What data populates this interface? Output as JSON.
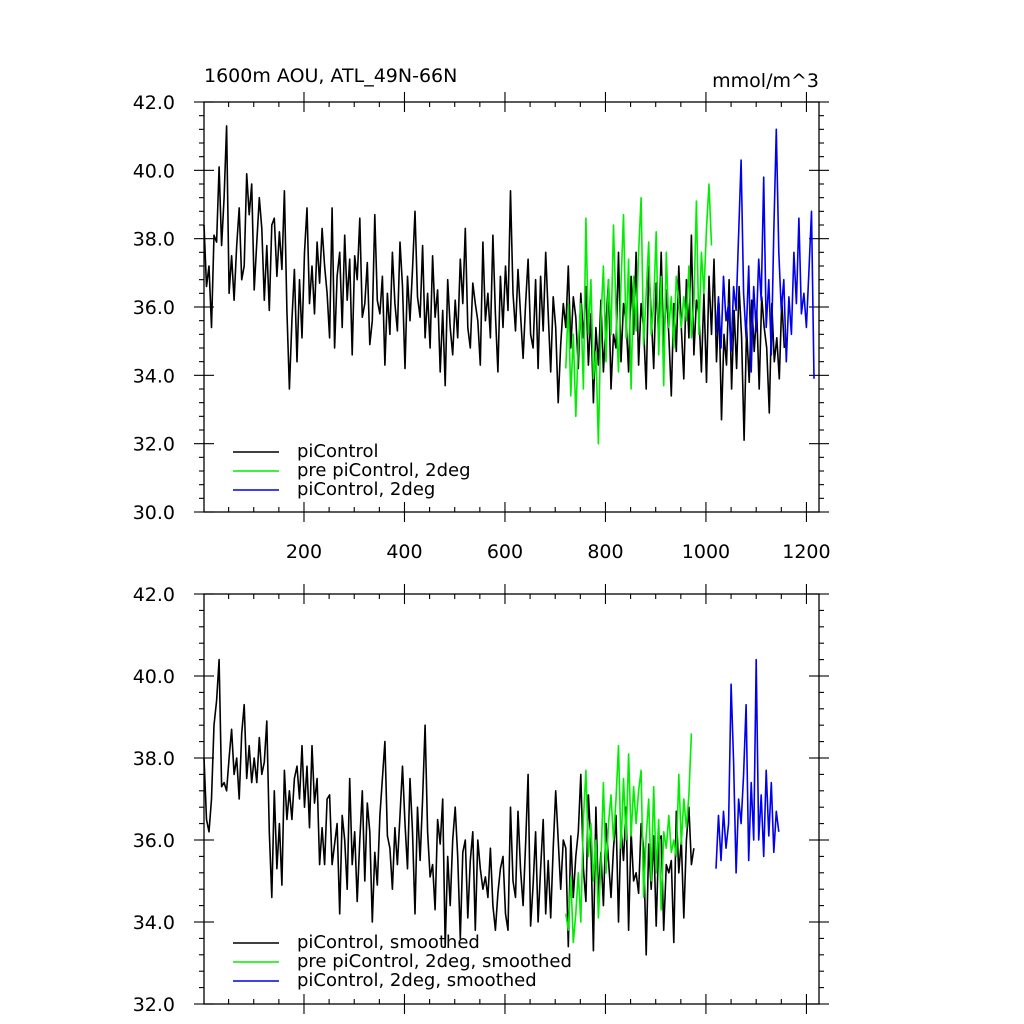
{
  "chart_data": [
    {
      "type": "line",
      "title": "1600m AOU, ATL_49N-66N",
      "units": "mmol/m^3",
      "xlim": [
        1,
        1225
      ],
      "ylim": [
        30.0,
        42.0
      ],
      "x_ticks": [
        200,
        400,
        600,
        800,
        1000,
        1200
      ],
      "x_tick_labels": [
        "200",
        "400",
        "600",
        "800",
        "1000",
        "1200"
      ],
      "y_ticks": [
        30.0,
        32.0,
        34.0,
        36.0,
        38.0,
        40.0,
        42.0
      ],
      "y_tick_labels": [
        "30.0",
        "32.0",
        "34.0",
        "36.0",
        "38.0",
        "40.0",
        "42.0"
      ],
      "legend_position": "bottom-left",
      "series": [
        {
          "name": "piControl",
          "color": "#000000",
          "x_start": 1,
          "x_step": 5,
          "values": [
            38.4,
            36.6,
            37.2,
            35.4,
            38.1,
            37.9,
            40.1,
            37.8,
            39.2,
            41.3,
            36.4,
            37.5,
            36.2,
            37.8,
            38.9,
            36.8,
            37.2,
            39.9,
            38.7,
            39.6,
            36.5,
            37.9,
            39.2,
            38.3,
            36.2,
            37.8,
            35.9,
            38.4,
            38.6,
            36.9,
            38.2,
            37.1,
            39.4,
            35.9,
            33.6,
            35.6,
            37.1,
            34.4,
            36.8,
            35.1,
            37.6,
            38.9,
            36.1,
            37.2,
            35.8,
            37.9,
            36.7,
            38.3,
            37.2,
            36.4,
            35.1,
            38.9,
            34.8,
            36.9,
            37.6,
            35.4,
            38.1,
            36.2,
            37.4,
            34.6,
            37.5,
            36.8,
            38.6,
            35.7,
            36.1,
            37.3,
            34.9,
            35.6,
            38.7,
            36.2,
            35.8,
            36.9,
            34.3,
            36.4,
            35.2,
            37.6,
            36.1,
            35.3,
            37.9,
            36.6,
            34.2,
            36.9,
            35.6,
            37.1,
            38.8,
            36.3,
            35.7,
            37.8,
            35.1,
            36.4,
            34.8,
            37.5,
            35.7,
            36.5,
            34.1,
            35.9,
            33.7,
            36.8,
            35.4,
            34.6,
            36.2,
            35.1,
            37.4,
            36.1,
            38.3,
            35.4,
            34.8,
            36.7,
            36.1,
            35.6,
            34.3,
            37.9,
            35.6,
            36.4,
            35.1,
            38.1,
            35.8,
            34.1,
            36.9,
            35.4,
            37.2,
            35.9,
            39.4,
            36.4,
            35.3,
            37.1,
            35.8,
            34.5,
            36.1,
            37.4,
            35.2,
            34.8,
            36.8,
            34.2,
            36.9,
            35.3,
            37.6,
            35.8,
            34.1,
            36.3,
            35.4,
            33.2,
            34.9,
            36.1,
            35.4,
            37.2,
            34.8,
            36.3,
            35.7,
            34.2,
            36.4,
            35.1,
            36.6,
            34.3,
            35.8,
            33.2,
            35.4,
            34.3,
            36.2,
            34.1,
            35.5,
            36.8,
            33.6,
            35.2,
            34.8,
            37.6,
            34.4,
            36.1,
            35.6,
            34.1,
            36.9,
            35.2,
            37.6,
            34.3,
            36.1,
            35.4,
            33.6,
            37.2,
            35.8,
            34.2,
            36.7,
            35.1,
            37.6,
            34.8,
            36.5,
            35.2,
            33.4,
            36.1,
            34.7,
            37.2,
            35.4,
            33.9,
            36.8,
            35.1,
            38.1,
            34.6,
            36.2,
            35.8,
            34.1,
            36.4,
            33.8,
            36.9,
            35.2,
            37.4,
            34.4,
            36.1,
            32.7,
            35.2,
            34.3,
            36.8,
            33.6,
            35.9,
            34.2,
            36.6,
            35.1,
            32.1,
            35.4,
            33.8,
            36.2,
            34.7,
            35.9,
            33.6,
            36.3,
            35.4,
            34.8,
            32.9,
            36.1,
            34.4,
            35.1,
            33.9,
            36.2,
            34.8
          ]
        },
        {
          "name": "pre piControl, 2deg",
          "color": "#00ee00",
          "x_start": 721,
          "x_step": 5,
          "values": [
            34.2,
            36.1,
            33.4,
            35.2,
            32.8,
            34.9,
            36.1,
            33.6,
            38.6,
            35.2,
            36.8,
            33.9,
            34.7,
            32.0,
            35.6,
            37.2,
            34.4,
            36.8,
            35.2,
            38.4,
            35.9,
            34.1,
            36.7,
            38.7,
            35.1,
            37.4,
            33.6,
            36.9,
            35.3,
            37.6,
            39.2,
            34.9,
            36.4,
            37.9,
            35.2,
            36.1,
            38.2,
            34.6,
            36.9,
            33.7,
            37.6,
            35.4,
            36.3,
            34.8,
            36.9,
            36.1,
            35.4,
            36.3,
            35.6,
            37.2,
            35.1,
            36.1,
            39.1,
            35.2,
            37.6,
            36.4,
            38.3,
            39.6,
            37.8
          ]
        },
        {
          "name": "piControl, 2deg",
          "color": "#0000ee",
          "x_start": 1020,
          "x_step": 5,
          "values": [
            35.2,
            36.3,
            34.8,
            36.9,
            35.6,
            36.1,
            34.7,
            36.6,
            35.9,
            38.1,
            40.3,
            36.4,
            35.1,
            37.2,
            34.1,
            36.6,
            35.3,
            37.4,
            36.2,
            39.8,
            35.4,
            36.8,
            34.6,
            38.2,
            41.2,
            37.6,
            35.9,
            36.8,
            34.4,
            36.3,
            35.2,
            37.6,
            36.1,
            38.6,
            35.8,
            36.4,
            35.4,
            37.1,
            38.8,
            33.9
          ]
        }
      ]
    },
    {
      "type": "line",
      "title": "",
      "xlim": [
        1,
        1225
      ],
      "ylim": [
        32.0,
        42.0
      ],
      "x_ticks": [
        200,
        400,
        600,
        800,
        1000,
        1200
      ],
      "y_ticks": [
        32.0,
        34.0,
        36.0,
        38.0,
        40.0,
        42.0
      ],
      "y_tick_labels": [
        "32.0",
        "34.0",
        "36.0",
        "38.0",
        "40.0",
        "42.0"
      ],
      "legend_position": "bottom-left",
      "series": [
        {
          "name": "piControl, smoothed",
          "color": "#000000",
          "x_start": 1,
          "x_step": 5,
          "values": [
            38.0,
            36.5,
            36.2,
            37.0,
            38.8,
            39.4,
            40.4,
            37.3,
            37.4,
            37.2,
            38.0,
            38.7,
            37.6,
            38.0,
            37.0,
            38.6,
            39.3,
            37.5,
            38.3,
            37.4,
            38.0,
            37.4,
            38.5,
            37.6,
            37.9,
            38.9,
            36.2,
            34.6,
            37.2,
            35.3,
            36.4,
            34.9,
            37.7,
            36.5,
            37.2,
            36.5,
            37.5,
            37.8,
            37.0,
            38.3,
            36.8,
            37.8,
            36.3,
            38.3,
            36.9,
            37.5,
            35.4,
            36.3,
            35.4,
            37.0,
            37.1,
            35.4,
            35.9,
            36.4,
            34.2,
            36.6,
            36.0,
            34.8,
            37.5,
            35.4,
            36.2,
            34.5,
            36.0,
            37.2,
            35.0,
            36.9,
            36.2,
            34.0,
            35.7,
            34.9,
            36.6,
            37.5,
            38.4,
            36.1,
            35.8,
            34.8,
            36.3,
            35.4,
            36.6,
            37.8,
            36.4,
            35.3,
            37.5,
            36.2,
            34.2,
            36.8,
            35.5,
            37.0,
            38.8,
            36.2,
            35.1,
            35.4,
            34.3,
            36.5,
            35.9,
            37.0,
            33.4,
            35.6,
            34.4,
            36.0,
            36.8,
            35.6,
            33.6,
            35.7,
            36.0,
            34.1,
            35.5,
            36.2,
            33.8,
            36.0,
            35.3,
            34.8,
            35.1,
            34.6,
            35.8,
            34.4,
            33.8,
            34.7,
            35.3,
            35.6,
            34.2,
            33.8,
            36.8,
            35.0,
            34.6,
            36.7,
            35.3,
            34.4,
            35.9,
            37.6,
            33.9,
            34.9,
            36.2,
            34.0,
            35.3,
            36.5,
            34.2,
            35.5,
            34.1,
            35.8,
            37.2,
            36.0,
            34.8,
            36.0,
            35.8,
            33.4,
            36.1,
            34.6,
            35.6,
            36.2,
            37.6,
            35.3,
            34.5,
            37.1,
            35.9,
            33.3,
            36.8,
            34.6,
            35.7,
            34.4,
            36.4,
            35.5,
            34.6,
            35.8,
            36.6,
            34.0,
            36.3,
            35.5,
            36.8,
            33.8,
            36.2,
            35.0,
            35.2,
            34.7,
            36.4,
            35.8,
            33.2,
            35.9,
            34.8,
            36.1,
            33.9,
            36.0,
            36.1,
            33.8,
            35.4,
            35.2,
            35.5,
            33.5,
            36.7,
            35.2,
            36.0,
            34.1,
            36.0,
            36.8,
            35.4,
            35.8
          ]
        },
        {
          "name": "pre piControl, 2deg, smoothed",
          "color": "#00ee00",
          "x_start": 721,
          "x_step": 5,
          "values": [
            34.2,
            33.8,
            35.1,
            33.5,
            34.2,
            35.2,
            34.0,
            36.5,
            37.7,
            35.6,
            36.4,
            35.0,
            36.0,
            34.1,
            35.4,
            37.4,
            35.2,
            36.4,
            37.1,
            36.0,
            37.0,
            38.3,
            35.8,
            37.5,
            36.0,
            38.1,
            36.1,
            37.3,
            36.4,
            37.2,
            37.7,
            34.6,
            36.1,
            37.0,
            35.0,
            37.3,
            35.2,
            36.5,
            34.3,
            36.2,
            35.8,
            36.6,
            35.7,
            36.0,
            35.6,
            37.6,
            35.9,
            37.0,
            36.3,
            37.1,
            38.6
          ]
        },
        {
          "name": "piControl, 2deg, smoothed",
          "color": "#0000ee",
          "x_start": 1020,
          "x_step": 5,
          "values": [
            35.3,
            36.6,
            35.5,
            36.7,
            35.8,
            36.4,
            39.8,
            37.9,
            35.2,
            37.0,
            36.4,
            37.6,
            39.3,
            35.5,
            37.4,
            36.0,
            40.4,
            36.0,
            37.1,
            35.6,
            37.7,
            36.1,
            37.4,
            35.7,
            36.7,
            36.2
          ]
        }
      ]
    }
  ]
}
